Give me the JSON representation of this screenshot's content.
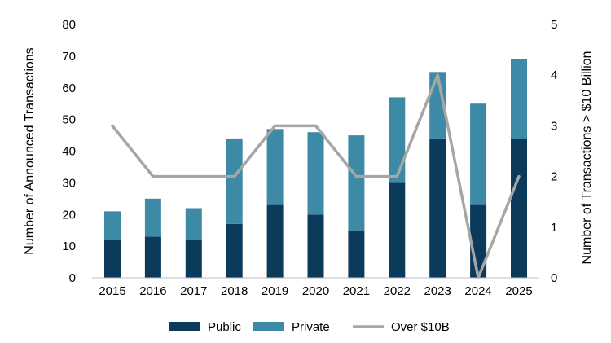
{
  "chart_data": {
    "type": "bar",
    "stacked": true,
    "categories": [
      "2015",
      "2016",
      "2017",
      "2018",
      "2019",
      "2020",
      "2021",
      "2022",
      "2023",
      "2024",
      "2025"
    ],
    "series": [
      {
        "name": "Public",
        "values": [
          12,
          13,
          12,
          17,
          23,
          20,
          15,
          30,
          44,
          23,
          44
        ],
        "color": "#0b3a5b"
      },
      {
        "name": "Private",
        "values": [
          9,
          12,
          10,
          27,
          24,
          26,
          30,
          27,
          21,
          32,
          25
        ],
        "color": "#3d8aa6"
      }
    ],
    "line_series": {
      "name": "Over $10B",
      "axis": "right",
      "values": [
        3,
        2,
        2,
        2,
        3,
        3,
        2,
        2,
        4,
        0,
        2
      ],
      "color": "#a6a6a6"
    },
    "ylabel": "Number of Announced Transactions",
    "ylabel_right": "Number of Transactions > $10 Billion",
    "ylim": [
      0,
      80
    ],
    "yticks": [
      "0",
      "10",
      "20",
      "30",
      "40",
      "50",
      "60",
      "70",
      "80"
    ],
    "ylim_right": [
      0,
      5
    ],
    "yticks_right": [
      "0",
      "1",
      "2",
      "3",
      "4",
      "5"
    ],
    "grid": false,
    "legend": "bottom-center"
  }
}
